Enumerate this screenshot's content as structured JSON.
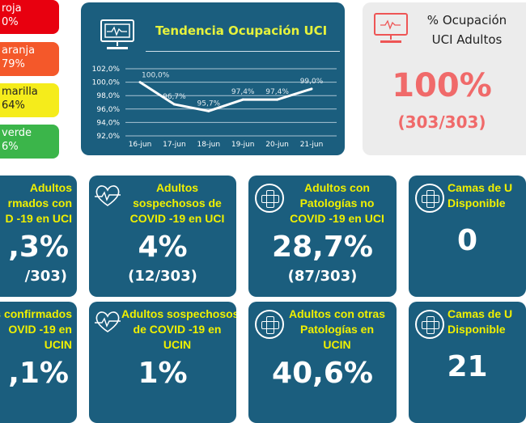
{
  "alerts": [
    {
      "line1": "roja",
      "line2": "0%",
      "color": "#e8000f"
    },
    {
      "line1": "aranja",
      "line2": "79%",
      "color": "#f4582a"
    },
    {
      "line1": "marilla",
      "line2": "64%",
      "color": "#f5ec1b"
    },
    {
      "line1": "verde",
      "line2": "6%",
      "color": "#3bb54a"
    }
  ],
  "chart_panel": {
    "title": "Tendencia Ocupación UCI",
    "icon": "monitor-heartbeat-icon"
  },
  "chart_data": {
    "type": "line",
    "title": "Tendencia Ocupación UCI",
    "categories": [
      "16-jun",
      "17-jun",
      "18-jun",
      "19-jun",
      "20-jun",
      "21-jun"
    ],
    "values": [
      100.0,
      96.7,
      95.7,
      97.4,
      97.4,
      99.0
    ],
    "labels": [
      "100,0%",
      "96,7%",
      "95,7%",
      "97,4%",
      "97,4%",
      "99,0%"
    ],
    "yticks": [
      "102,0%",
      "100,0%",
      "98,0%",
      "96,0%",
      "94,0%",
      "92,0%"
    ],
    "ylim": [
      92,
      102
    ],
    "grid": true
  },
  "occupancy": {
    "title1": "% Ocupación",
    "title2": "UCI Adultos",
    "value": "100%",
    "detail": "(303/303)",
    "icon": "monitor-heartbeat-icon"
  },
  "cards": [
    {
      "lines": [
        "Adultos",
        "rmados con",
        "D -19 en UCI"
      ],
      "value": ",3%",
      "detail": "/303)"
    },
    {
      "lines": [
        "Adultos",
        "sospechosos de",
        "COVID -19 en UCI"
      ],
      "value": "4%",
      "detail": "(12/303)",
      "icon": "heart-pulse-icon"
    },
    {
      "lines": [
        "Adultos con",
        "Patologías no",
        "COVID -19 en UCI"
      ],
      "value": "28,7%",
      "detail": "(87/303)",
      "icon": "medical-cross-icon"
    },
    {
      "lines": [
        "Camas de U",
        "Disponible"
      ],
      "value": "0",
      "icon": "medical-cross-icon"
    },
    {
      "lines": [
        "s confirmados",
        "OVID -19 en",
        "UCIN"
      ],
      "value": ",1%"
    },
    {
      "lines": [
        "Adultos sospechosos",
        "de COVID -19 en",
        "UCIN"
      ],
      "value": "1%",
      "icon": "heart-pulse-icon"
    },
    {
      "lines": [
        "Adultos con otras",
        "Patologías en",
        "UCIN"
      ],
      "value": "40,6%",
      "icon": "medical-cross-icon"
    },
    {
      "lines": [
        "Camas de U",
        "Disponible"
      ],
      "value": "21",
      "icon": "medical-cross-icon"
    }
  ]
}
